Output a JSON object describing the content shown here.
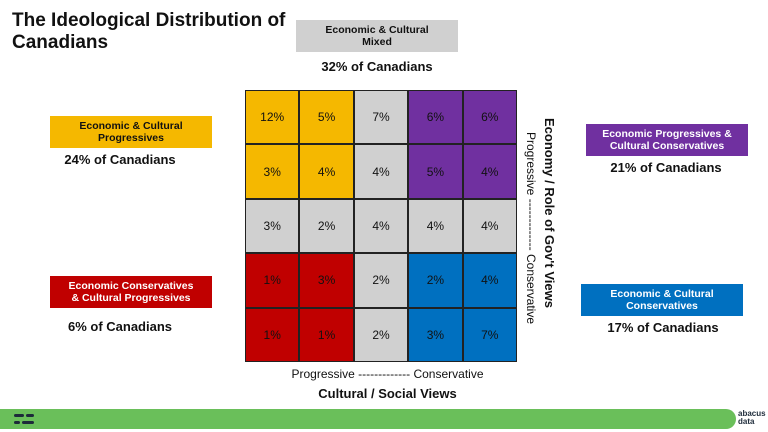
{
  "chart_data": {
    "type": "heatmap",
    "title": "The Ideological Distribution of Canadians",
    "x_label": "Cultural / Social Views",
    "x_scale_label": "Progressive ------------- Conservative",
    "y_label": "Economy / Role of Gov't Views",
    "y_scale_label": "Progressive ------------- Conservative",
    "values": [
      [
        12,
        5,
        7,
        6,
        6
      ],
      [
        3,
        4,
        4,
        5,
        4
      ],
      [
        3,
        2,
        4,
        4,
        4
      ],
      [
        1,
        3,
        2,
        2,
        4
      ],
      [
        1,
        1,
        2,
        3,
        7
      ]
    ],
    "value_labels": [
      [
        "12%",
        "5%",
        "7%",
        "6%",
        "6%"
      ],
      [
        "3%",
        "4%",
        "4%",
        "5%",
        "4%"
      ],
      [
        "3%",
        "2%",
        "4%",
        "4%",
        "4%"
      ],
      [
        "1%",
        "3%",
        "2%",
        "2%",
        "4%"
      ],
      [
        "1%",
        "1%",
        "2%",
        "3%",
        "7%"
      ]
    ],
    "cell_colors": [
      [
        "#f5b800",
        "#f5b800",
        "#d0d0d0",
        "#7030a0",
        "#7030a0"
      ],
      [
        "#f5b800",
        "#f5b800",
        "#d0d0d0",
        "#7030a0",
        "#7030a0"
      ],
      [
        "#d0d0d0",
        "#d0d0d0",
        "#d0d0d0",
        "#d0d0d0",
        "#d0d0d0"
      ],
      [
        "#c00000",
        "#c00000",
        "#d0d0d0",
        "#0070c0",
        "#0070c0"
      ],
      [
        "#c00000",
        "#c00000",
        "#d0d0d0",
        "#0070c0",
        "#0070c0"
      ]
    ],
    "segments": [
      {
        "name": "Economic & Cultural Mixed",
        "share": 32,
        "share_label": "32% of Canadians",
        "color": "#d0d0d0"
      },
      {
        "name": "Economic & Cultural Progressives",
        "share": 24,
        "share_label": "24% of Canadians",
        "color": "#f5b800"
      },
      {
        "name": "Economic Conservatives & Cultural Progressives",
        "share": 6,
        "share_label": "6% of Canadians",
        "color": "#c00000"
      },
      {
        "name": "Economic Progressives & Cultural Conservatives",
        "share": 21,
        "share_label": "21% of Canadians",
        "color": "#7030a0"
      },
      {
        "name": "Economic & Cultural Conservatives",
        "share": 17,
        "share_label": "17% of Canadians",
        "color": "#0070c0"
      }
    ],
    "brand": "abacus data"
  }
}
